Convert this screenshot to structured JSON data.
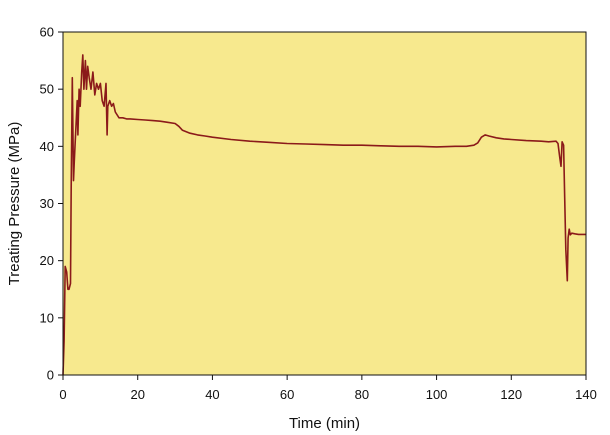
{
  "chart_data": {
    "type": "line",
    "xlabel": "Time (min)",
    "ylabel": "Treating Pressure (MPa)",
    "xlim": [
      0,
      140
    ],
    "ylim": [
      0,
      60
    ],
    "xticks": [
      0,
      20,
      40,
      60,
      80,
      100,
      120,
      140
    ],
    "yticks": [
      0,
      10,
      20,
      30,
      40,
      50,
      60
    ],
    "grid": false,
    "background_color": "#f7e98e",
    "line_color": "#8b1a1a",
    "series": [
      {
        "x": [
          0,
          0.3,
          0.6,
          1.0,
          1.3,
          1.6,
          2.0,
          2.2,
          2.5,
          2.8,
          3.0,
          3.2,
          3.5,
          3.8,
          4.0,
          4.3,
          4.6,
          5.0,
          5.3,
          5.6,
          6.0,
          6.3,
          6.6,
          7.0,
          7.5,
          8.0,
          8.5,
          9.0,
          9.5,
          10.0,
          10.5,
          11.0,
          11.5,
          11.8,
          12.0,
          12.5,
          13.0,
          13.5,
          14.0,
          15.0,
          16.0,
          17.0,
          18.0,
          20.0,
          22.0,
          24.0,
          26.0,
          28.0,
          30.0,
          31.0,
          32.0,
          34.0,
          36.0,
          38.0,
          40.0,
          45.0,
          50.0,
          55.0,
          60.0,
          65.0,
          70.0,
          75.0,
          80.0,
          85.0,
          90.0,
          95.0,
          100.0,
          105.0,
          108.0,
          110.0,
          111.0,
          112.0,
          113.0,
          114.0,
          116.0,
          118.0,
          120.0,
          124.0,
          128.0,
          130.0,
          132.0,
          132.5,
          133.0,
          133.3,
          133.6,
          134.0,
          134.3,
          134.6,
          135.0,
          135.2,
          135.5,
          135.8,
          136.2,
          137.0,
          138.0,
          139.0,
          140.0
        ],
        "y": [
          0,
          6,
          19,
          18,
          15,
          15,
          16,
          33,
          52,
          34,
          37,
          40,
          44,
          48,
          42,
          50,
          47,
          53,
          56,
          50,
          55,
          50,
          54,
          52,
          50,
          53,
          49,
          51,
          50,
          51,
          48,
          47,
          51,
          42,
          47,
          48,
          47,
          47.5,
          46,
          45,
          45,
          44.8,
          44.8,
          44.7,
          44.6,
          44.5,
          44.4,
          44.2,
          44.0,
          43.5,
          42.8,
          42.3,
          42.0,
          41.8,
          41.6,
          41.2,
          40.9,
          40.7,
          40.5,
          40.4,
          40.3,
          40.2,
          40.2,
          40.1,
          40.0,
          40.0,
          39.9,
          40.0,
          40.0,
          40.2,
          40.6,
          41.6,
          42.0,
          41.8,
          41.5,
          41.3,
          41.2,
          41.0,
          40.9,
          40.8,
          40.9,
          40.5,
          38.0,
          36.5,
          40.8,
          40.2,
          31.0,
          22.0,
          16.5,
          24.0,
          25.5,
          24.5,
          24.8,
          24.7,
          24.6,
          24.6,
          24.6
        ]
      }
    ]
  }
}
